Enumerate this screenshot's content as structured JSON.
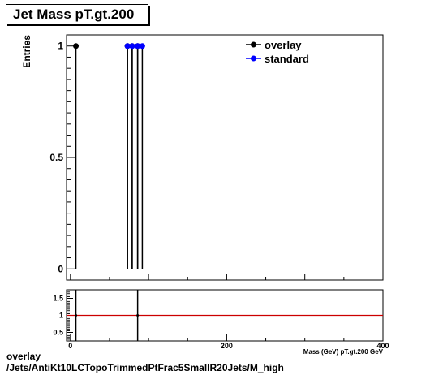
{
  "title": "Jet Mass pT.gt.200",
  "footer": {
    "line1": "overlay",
    "line2": "/Jets/AntiKt10LCTopoTrimmedPtFrac5SmallR20Jets/M_high"
  },
  "chart_data": [
    {
      "type": "scatter",
      "ylabel": "Entries",
      "xlim": [
        -5,
        400
      ],
      "ylim": [
        -0.05,
        1.05
      ],
      "yticks": [
        {
          "v": 0,
          "label": "0"
        },
        {
          "v": 0.5,
          "label": "0.5"
        },
        {
          "v": 1,
          "label": "1"
        }
      ],
      "xticks": [],
      "legend": {
        "position": "top-right",
        "entries": [
          {
            "name": "overlay",
            "color": "#000000"
          },
          {
            "name": "standard",
            "color": "#0000ff"
          }
        ]
      },
      "series": [
        {
          "name": "overlay",
          "color": "#000000",
          "x": [
            7,
            73,
            79,
            86
          ],
          "y": [
            1,
            1,
            1,
            1
          ]
        },
        {
          "name": "standard",
          "color": "#0000ff",
          "x": [
            73,
            79,
            86,
            92
          ],
          "y": [
            1,
            1,
            1,
            1
          ]
        }
      ]
    },
    {
      "type": "line",
      "xlabel": "Mass (GeV) pT.gt.200 GeV",
      "xlim": [
        -5,
        400
      ],
      "ylim": [
        0.25,
        1.75
      ],
      "yticks": [
        {
          "v": 0.5,
          "label": "0.5"
        },
        {
          "v": 1,
          "label": "1"
        },
        {
          "v": 1.5,
          "label": "1.5"
        }
      ],
      "xticks": [
        {
          "v": 0,
          "label": "0"
        },
        {
          "v": 200,
          "label": "200"
        },
        {
          "v": 400,
          "label": "400"
        }
      ],
      "reference_line": {
        "y": 1,
        "color": "#cc0000"
      },
      "series": [
        {
          "name": "ratio",
          "color": "#000000",
          "x": [
            7,
            86
          ],
          "y": [
            1,
            1
          ]
        }
      ]
    }
  ]
}
